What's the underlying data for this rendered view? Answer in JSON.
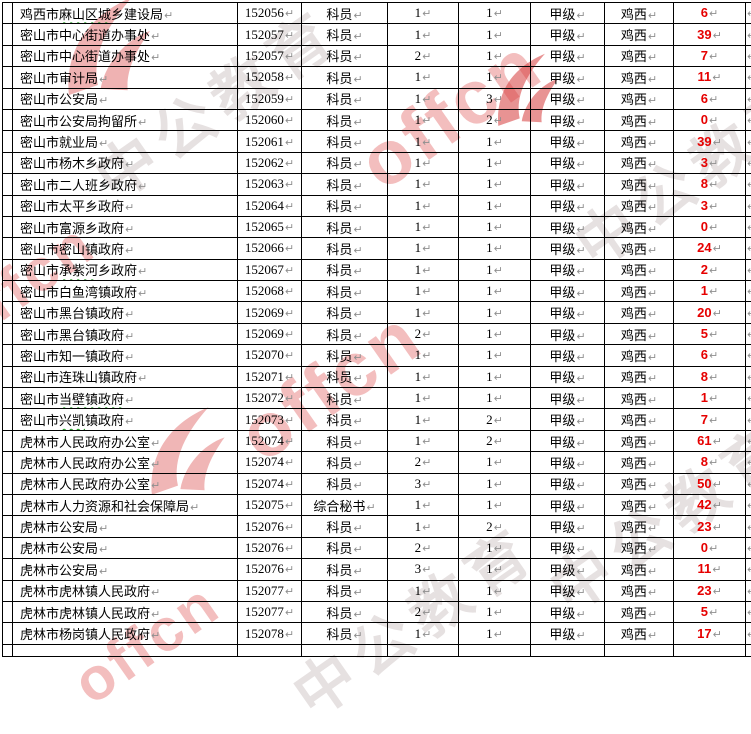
{
  "marks": {
    "line_break": "↵"
  },
  "colors": {
    "count_red": "#e60000",
    "border_black": "#000000",
    "squiggle_green": "#1e9b1e",
    "return_mark_gray": "#8f8f8f",
    "watermark_pink": "#e77d7d",
    "watermark_gray": "#b0a2a2",
    "watermark_red": "#d94848"
  },
  "watermark": {
    "brand_latin": "offcn",
    "brand_cn": "中公教育"
  },
  "table": {
    "rows": [
      {
        "dept": "鸡西市麻山区城乡建设局",
        "underline": "麻山区城",
        "code": "152056",
        "title": "科员",
        "n1": "1",
        "n2": "1",
        "level": "甲级",
        "city": "鸡西",
        "count": "6"
      },
      {
        "dept": "密山市中心街道办事处",
        "code": "152057",
        "title": "科员",
        "n1": "1",
        "n2": "1",
        "level": "甲级",
        "city": "鸡西",
        "count": "39"
      },
      {
        "dept": "密山市中心街道办事处",
        "code": "152057",
        "title": "科员",
        "n1": "2",
        "n2": "1",
        "level": "甲级",
        "city": "鸡西",
        "count": "7"
      },
      {
        "dept": "密山市审计局",
        "code": "152058",
        "title": "科员",
        "n1": "1",
        "n2": "1",
        "level": "甲级",
        "city": "鸡西",
        "count": "11"
      },
      {
        "dept": "密山市公安局",
        "code": "152059",
        "title": "科员",
        "n1": "1",
        "n2": "3",
        "level": "甲级",
        "city": "鸡西",
        "count": "6"
      },
      {
        "dept": "密山市公安局拘留所",
        "code": "152060",
        "title": "科员",
        "n1": "1",
        "n2": "2",
        "level": "甲级",
        "city": "鸡西",
        "count": "0"
      },
      {
        "dept": "密山市就业局",
        "code": "152061",
        "title": "科员",
        "n1": "1",
        "n2": "1",
        "level": "甲级",
        "city": "鸡西",
        "count": "39"
      },
      {
        "dept": "密山市杨木乡政府",
        "code": "152062",
        "title": "科员",
        "n1": "1",
        "n2": "1",
        "level": "甲级",
        "city": "鸡西",
        "count": "3"
      },
      {
        "dept": "密山市二人班乡政府",
        "code": "152063",
        "title": "科员",
        "n1": "1",
        "n2": "1",
        "level": "甲级",
        "city": "鸡西",
        "count": "8"
      },
      {
        "dept": "密山市太平乡政府",
        "code": "152064",
        "title": "科员",
        "n1": "1",
        "n2": "1",
        "level": "甲级",
        "city": "鸡西",
        "count": "3"
      },
      {
        "dept": "密山市富源乡政府",
        "code": "152065",
        "title": "科员",
        "n1": "1",
        "n2": "1",
        "level": "甲级",
        "city": "鸡西",
        "count": "0"
      },
      {
        "dept": "密山市密山镇政府",
        "code": "152066",
        "title": "科员",
        "n1": "1",
        "n2": "1",
        "level": "甲级",
        "city": "鸡西",
        "count": "24"
      },
      {
        "dept": "密山市承紫河乡政府",
        "underline": "承紫河",
        "code": "152067",
        "title": "科员",
        "n1": "1",
        "n2": "1",
        "level": "甲级",
        "city": "鸡西",
        "count": "2"
      },
      {
        "dept": "密山市白鱼湾镇政府",
        "code": "152068",
        "title": "科员",
        "n1": "1",
        "n2": "1",
        "level": "甲级",
        "city": "鸡西",
        "count": "1"
      },
      {
        "dept": "密山市黑台镇政府",
        "code": "152069",
        "title": "科员",
        "n1": "1",
        "n2": "1",
        "level": "甲级",
        "city": "鸡西",
        "count": "20"
      },
      {
        "dept": "密山市黑台镇政府",
        "code": "152069",
        "title": "科员",
        "n1": "2",
        "n2": "1",
        "level": "甲级",
        "city": "鸡西",
        "count": "5"
      },
      {
        "dept": "密山市知一镇政府",
        "code": "152070",
        "title": "科员",
        "n1": "1",
        "n2": "1",
        "level": "甲级",
        "city": "鸡西",
        "count": "6"
      },
      {
        "dept": "密山市连珠山镇政府",
        "code": "152071",
        "title": "科员",
        "n1": "1",
        "n2": "1",
        "level": "甲级",
        "city": "鸡西",
        "count": "8"
      },
      {
        "dept": "密山市当壁镇政府",
        "underline": "当壁镇政府",
        "code": "152072",
        "title": "科员",
        "n1": "1",
        "n2": "1",
        "level": "甲级",
        "city": "鸡西",
        "count": "1"
      },
      {
        "dept": "密山市兴凯镇政府",
        "underline": "兴凯",
        "code": "152073",
        "title": "科员",
        "n1": "1",
        "n2": "2",
        "level": "甲级",
        "city": "鸡西",
        "count": "7"
      },
      {
        "dept": "虎林市人民政府办公室",
        "code": "152074",
        "title": "科员",
        "n1": "1",
        "n2": "2",
        "level": "甲级",
        "city": "鸡西",
        "count": "61"
      },
      {
        "dept": "虎林市人民政府办公室",
        "code": "152074",
        "title": "科员",
        "n1": "2",
        "n2": "1",
        "level": "甲级",
        "city": "鸡西",
        "count": "8"
      },
      {
        "dept": "虎林市人民政府办公室",
        "code": "152074",
        "title": "科员",
        "n1": "3",
        "n2": "1",
        "level": "甲级",
        "city": "鸡西",
        "count": "50"
      },
      {
        "dept": "虎林市人力资源和社会保障局",
        "code": "152075",
        "title": "综合秘书",
        "n1": "1",
        "n2": "1",
        "level": "甲级",
        "city": "鸡西",
        "count": "42"
      },
      {
        "dept": "虎林市公安局",
        "code": "152076",
        "title": "科员",
        "n1": "1",
        "n2": "2",
        "level": "甲级",
        "city": "鸡西",
        "count": "23"
      },
      {
        "dept": "虎林市公安局",
        "code": "152076",
        "title": "科员",
        "n1": "2",
        "n2": "1",
        "level": "甲级",
        "city": "鸡西",
        "count": "0"
      },
      {
        "dept": "虎林市公安局",
        "code": "152076",
        "title": "科员",
        "n1": "3",
        "n2": "1",
        "level": "甲级",
        "city": "鸡西",
        "count": "11"
      },
      {
        "dept": "虎林市虎林镇人民政府",
        "code": "152077",
        "title": "科员",
        "n1": "1",
        "n2": "1",
        "level": "甲级",
        "city": "鸡西",
        "count": "23"
      },
      {
        "dept": "虎林市虎林镇人民政府",
        "code": "152077",
        "title": "科员",
        "n1": "2",
        "n2": "1",
        "level": "甲级",
        "city": "鸡西",
        "count": "5"
      },
      {
        "dept": "虎林市杨岗镇人民政府",
        "code": "152078",
        "title": "科员",
        "n1": "1",
        "n2": "1",
        "level": "甲级",
        "city": "鸡西",
        "count": "17"
      }
    ]
  }
}
